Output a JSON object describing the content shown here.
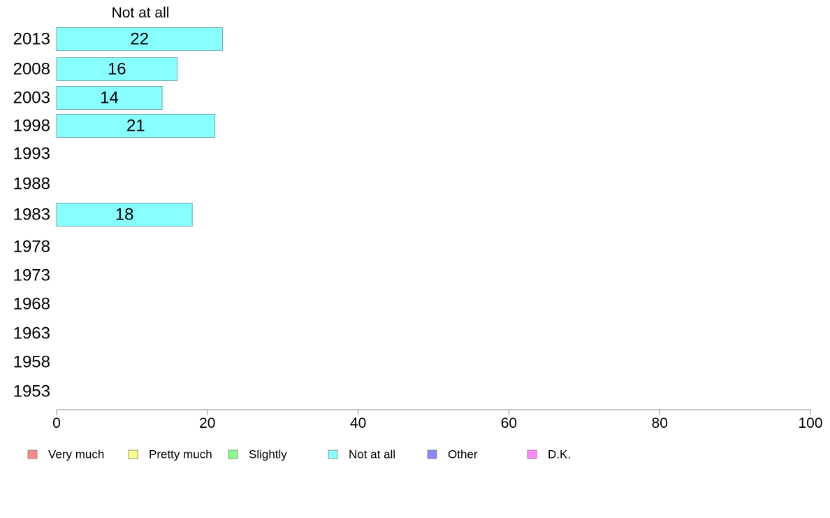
{
  "chart_data": {
    "type": "bar",
    "orientation": "horizontal",
    "series_label": "Not at all",
    "categories": [
      "2013",
      "2008",
      "2003",
      "1998",
      "1993",
      "1988",
      "1983",
      "1978",
      "1973",
      "1968",
      "1963",
      "1958",
      "1953"
    ],
    "series": [
      {
        "name": "Not at all",
        "values": [
          22,
          16,
          14,
          21,
          null,
          null,
          18,
          null,
          null,
          null,
          null,
          null,
          null
        ],
        "color": "#88ffff"
      }
    ],
    "xlim": [
      0,
      100
    ],
    "x_ticks": [
      0,
      20,
      40,
      60,
      80,
      100
    ],
    "grid": false,
    "legend_placement": "bottom",
    "legend": [
      {
        "label": "Very much",
        "color": "#ff8888"
      },
      {
        "label": "Pretty much",
        "color": "#ffff88"
      },
      {
        "label": "Slightly",
        "color": "#88ff88"
      },
      {
        "label": "Not at all",
        "color": "#88ffff"
      },
      {
        "label": "Other",
        "color": "#8888ff"
      },
      {
        "label": "D.K.",
        "color": "#ff88ff"
      }
    ]
  }
}
